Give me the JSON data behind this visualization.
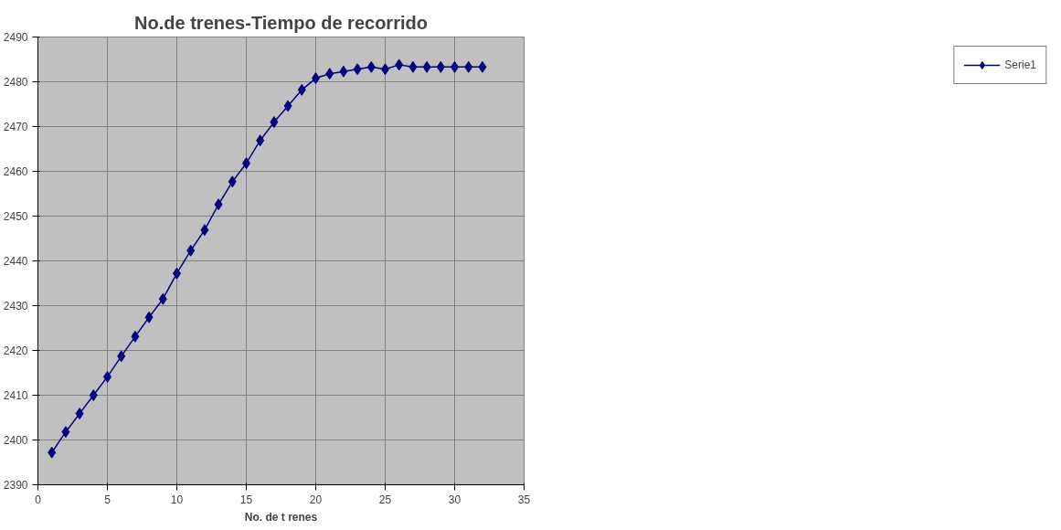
{
  "chart_data": {
    "type": "line",
    "title": "No.de trenes-Tiempo de recorrido",
    "xlabel": "No. de t renes",
    "x": [
      1,
      2,
      3,
      4,
      5,
      6,
      7,
      8,
      9,
      10,
      11,
      12,
      13,
      14,
      15,
      16,
      17,
      18,
      19,
      20,
      21,
      22,
      23,
      24,
      25,
      26,
      27,
      28,
      29,
      30,
      31,
      32
    ],
    "series": [
      {
        "name": "Serie1",
        "color": "#000080",
        "values": [
          2397.2,
          2401.8,
          2405.9,
          2410,
          2414.1,
          2418.7,
          2423.1,
          2427.4,
          2431.5,
          2437.2,
          2442.3,
          2446.9,
          2452.6,
          2457.7,
          2461.8,
          2466.9,
          2471,
          2474.6,
          2478.2,
          2480.8,
          2481.8,
          2482.3,
          2482.8,
          2483.3,
          2482.8,
          2483.8,
          2483.3,
          2483.3,
          2483.3,
          2483.3,
          2483.3,
          2483.3
        ]
      }
    ],
    "xlim": [
      0,
      35
    ],
    "xticks": [
      0,
      5,
      10,
      15,
      20,
      25,
      30,
      35
    ],
    "ylim": [
      2390,
      2490
    ],
    "yticks": [
      2390,
      2400,
      2410,
      2420,
      2430,
      2440,
      2450,
      2460,
      2470,
      2480,
      2490
    ],
    "grid": true,
    "legend": "right",
    "marker": "diamond",
    "line_style": "solid"
  }
}
